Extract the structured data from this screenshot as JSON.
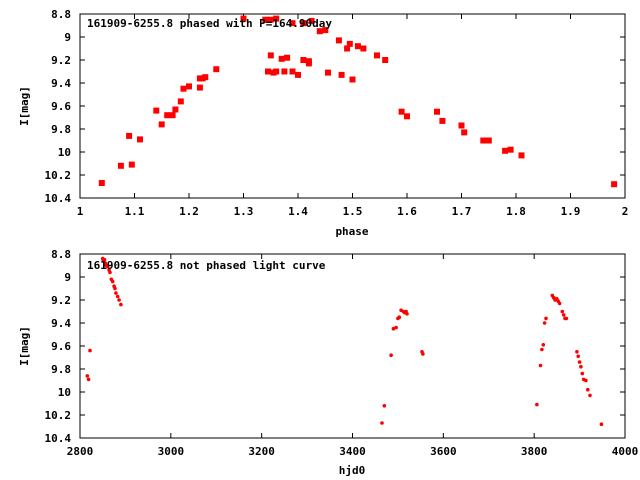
{
  "chart_data": [
    {
      "type": "scatter",
      "title": "161909-6255.8 phased with P=164.90day",
      "xlabel": "phase",
      "ylabel": "I[mag]",
      "xlim": [
        1,
        2
      ],
      "ylim": [
        10.4,
        8.8
      ],
      "y_inverted": true,
      "grid": false,
      "x_ticks": [
        "1",
        "1.1",
        "1.2",
        "1.3",
        "1.4",
        "1.5",
        "1.6",
        "1.7",
        "1.8",
        "1.9",
        "2"
      ],
      "y_ticks": [
        "8.8",
        "9",
        "9.2",
        "9.4",
        "9.6",
        "9.8",
        "10",
        "10.2",
        "10.4"
      ],
      "marker": "filled-square",
      "color": "#ff0000",
      "x": [
        1.04,
        1.075,
        1.09,
        1.095,
        1.11,
        1.14,
        1.15,
        1.16,
        1.17,
        1.175,
        1.185,
        1.19,
        1.2,
        1.22,
        1.22,
        1.225,
        1.23,
        1.25,
        1.3,
        1.34,
        1.345,
        1.35,
        1.35,
        1.355,
        1.36,
        1.36,
        1.37,
        1.375,
        1.38,
        1.39,
        1.39,
        1.4,
        1.41,
        1.41,
        1.42,
        1.42,
        1.425,
        1.44,
        1.45,
        1.455,
        1.475,
        1.48,
        1.49,
        1.495,
        1.5,
        1.51,
        1.52,
        1.545,
        1.56,
        1.59,
        1.6,
        1.655,
        1.665,
        1.7,
        1.705,
        1.74,
        1.75,
        1.78,
        1.79,
        1.81,
        1.98
      ],
      "y": [
        10.27,
        10.12,
        9.86,
        10.11,
        9.89,
        9.64,
        9.76,
        9.68,
        9.68,
        9.63,
        9.56,
        9.45,
        9.43,
        9.44,
        9.36,
        9.36,
        9.35,
        9.28,
        8.84,
        8.85,
        9.3,
        8.85,
        9.16,
        9.31,
        8.84,
        9.3,
        9.19,
        9.3,
        9.18,
        8.88,
        9.3,
        9.33,
        9.2,
        8.88,
        9.23,
        9.21,
        8.86,
        8.95,
        8.94,
        9.31,
        9.03,
        9.33,
        9.1,
        9.06,
        9.37,
        9.08,
        9.1,
        9.16,
        9.2,
        9.65,
        9.69,
        9.65,
        9.73,
        9.77,
        9.83,
        9.9,
        9.9,
        9.99,
        9.98,
        10.03,
        10.28
      ]
    },
    {
      "type": "scatter",
      "title": "161909-6255.8 not phased light curve",
      "xlabel": "hjd0",
      "ylabel": "I[mag]",
      "xlim": [
        2800,
        4000
      ],
      "ylim": [
        10.4,
        8.8
      ],
      "y_inverted": true,
      "grid": false,
      "x_ticks": [
        "2800",
        "3000",
        "3200",
        "3400",
        "3600",
        "3800",
        "4000"
      ],
      "y_ticks": [
        "8.8",
        "9",
        "9.2",
        "9.4",
        "9.6",
        "9.8",
        "10",
        "10.2",
        "10.4"
      ],
      "marker": "dot",
      "color": "#ff0000",
      "x": [
        2816,
        2819,
        2822,
        2850,
        2851,
        2854,
        2856,
        2858,
        2861,
        2864,
        2866,
        2869,
        2872,
        2875,
        2877,
        2879,
        2883,
        2886,
        2890,
        3465,
        3470,
        3485,
        3490,
        3496,
        3500,
        3503,
        3507,
        3512,
        3515,
        3518,
        3520,
        3553,
        3555,
        3806,
        3814,
        3817,
        3820,
        3823,
        3826,
        3840,
        3843,
        3846,
        3850,
        3853,
        3856,
        3862,
        3865,
        3868,
        3871,
        3894,
        3897,
        3900,
        3903,
        3906,
        3909,
        3914,
        3918,
        3923,
        3948
      ],
      "y": [
        9.86,
        9.89,
        9.64,
        8.84,
        8.86,
        8.85,
        8.88,
        8.9,
        8.91,
        8.94,
        8.96,
        9.02,
        9.04,
        9.08,
        9.1,
        9.14,
        9.17,
        9.2,
        9.24,
        10.27,
        10.12,
        9.68,
        9.45,
        9.44,
        9.36,
        9.35,
        9.29,
        9.3,
        9.31,
        9.3,
        9.32,
        9.65,
        9.67,
        10.11,
        9.77,
        9.63,
        9.59,
        9.4,
        9.36,
        9.16,
        9.18,
        9.2,
        9.19,
        9.21,
        9.23,
        9.3,
        9.33,
        9.36,
        9.36,
        9.65,
        9.69,
        9.74,
        9.78,
        9.84,
        9.89,
        9.9,
        9.98,
        10.03,
        10.28
      ]
    }
  ]
}
